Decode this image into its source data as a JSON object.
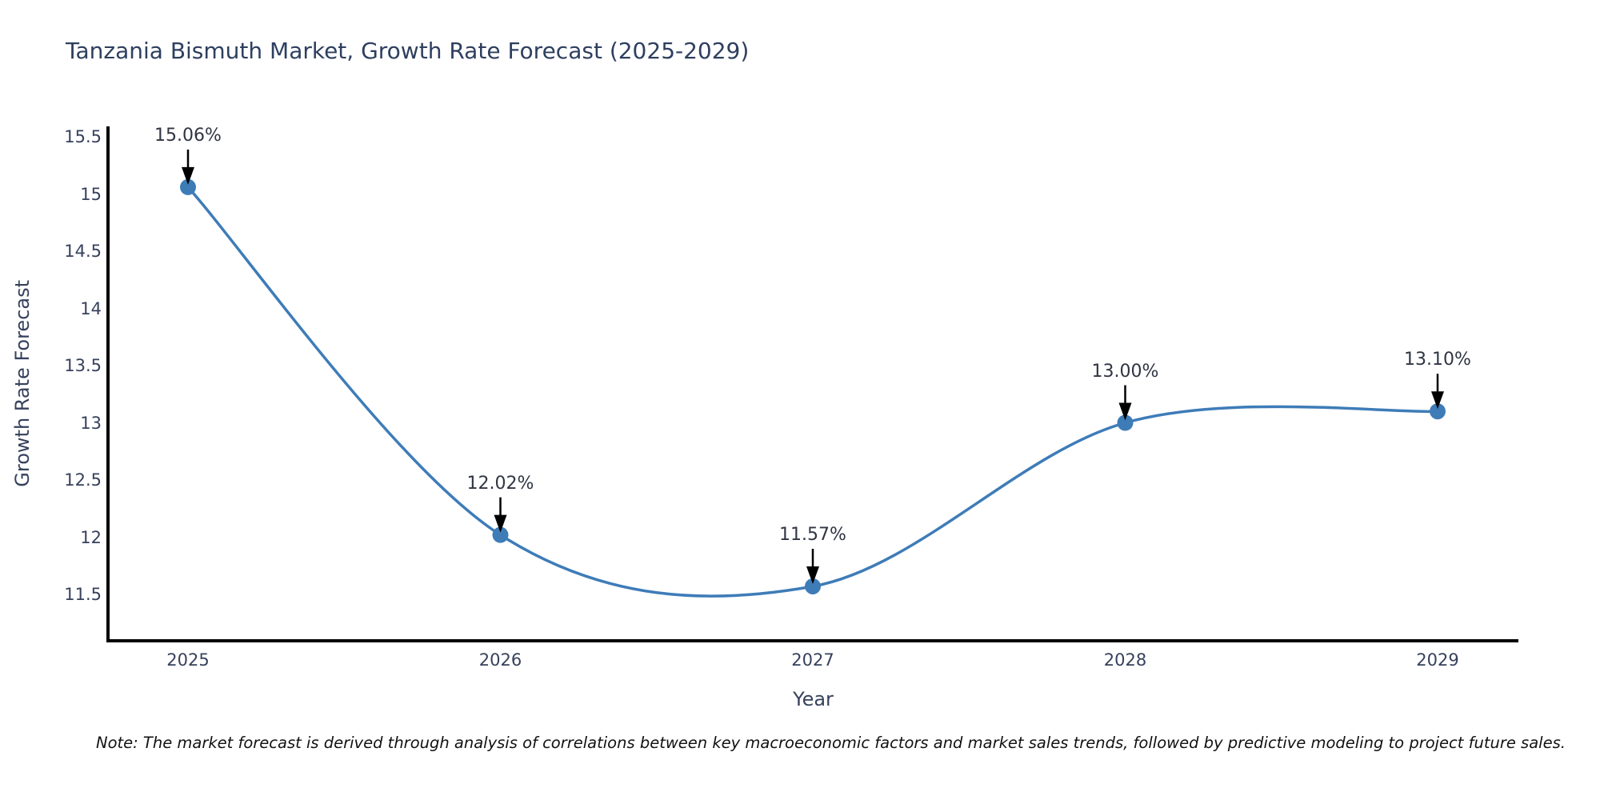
{
  "chart_data": {
    "type": "line",
    "title": "Tanzania Bismuth Market, Growth Rate Forecast (2025-2029)",
    "xlabel": "Year",
    "ylabel": "Growth Rate Forecast",
    "x": [
      2025,
      2026,
      2027,
      2028,
      2029
    ],
    "xtick_labels": [
      "2025",
      "2026",
      "2027",
      "2028",
      "2029"
    ],
    "values": [
      15.06,
      12.02,
      11.57,
      13.0,
      13.1
    ],
    "point_labels": [
      "15.06%",
      "12.02%",
      "11.57%",
      "13.00%",
      "13.10%"
    ],
    "ytick_values": [
      11.5,
      12,
      12.5,
      13,
      13.5,
      14,
      14.5,
      15,
      15.5
    ],
    "ytick_labels": [
      "11.5",
      "12",
      "12.5",
      "13",
      "13.5",
      "14",
      "14.5",
      "15",
      "15.5"
    ],
    "ylim": [
      11.1,
      15.6
    ],
    "xlim": [
      2024.7,
      2029.3
    ],
    "grid": false,
    "legend": "none",
    "curve_style": "smooth-spline",
    "marker": "circle",
    "annotation_style": "value-label-with-down-arrow"
  },
  "note": "Note: The market forecast is derived through analysis of correlations between key macroeconomic factors and market sales trends, followed by predictive modeling to project future sales.",
  "colors": {
    "accent": "#3e7cb8",
    "spine": "#000000",
    "arrow": "#000000",
    "tick_text": "#36415c",
    "title_text": "#2e3f5f",
    "anno_text": "#2f3542",
    "background": "#ffffff"
  }
}
